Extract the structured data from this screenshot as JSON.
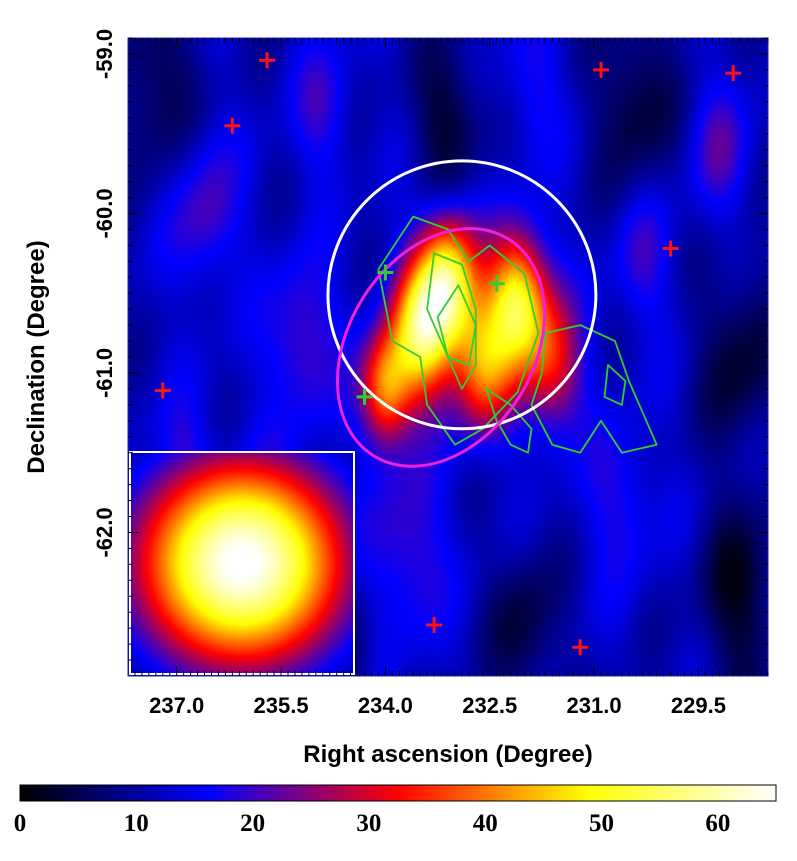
{
  "chart_data": {
    "type": "heatmap",
    "title": "",
    "xlabel": "Right ascension (Degree)",
    "ylabel": "Declination (Degree)",
    "x_axis": {
      "reversed": true,
      "xlim": [
        237.7,
        228.5
      ],
      "ticks": [
        237.0,
        235.5,
        234.0,
        232.5,
        231.0,
        229.5
      ],
      "tick_labels": [
        "237.0",
        "235.5",
        "234.0",
        "232.5",
        "231.0",
        "229.5"
      ]
    },
    "y_axis": {
      "ylim": [
        -62.9,
        -58.9
      ],
      "ticks": [
        -59.0,
        -60.0,
        -61.0,
        -62.0
      ],
      "tick_labels": [
        "-59.0",
        "-60.0",
        "-61.0",
        "-62.0"
      ]
    },
    "colorbar": {
      "min": 0,
      "max": 65,
      "ticks": [
        0,
        10,
        20,
        30,
        40,
        50,
        60
      ],
      "tick_labels": [
        "0",
        "10",
        "20",
        "30",
        "40",
        "50",
        "60"
      ],
      "colormap_stops": [
        "#000000",
        "#0000ff",
        "#ff0000",
        "#ffff00",
        "#ffffff"
      ]
    },
    "background_level": 12,
    "emission_sources": [
      {
        "ra": 233.1,
        "dec": -60.45,
        "amplitude": 40,
        "sigma_deg": 0.3
      },
      {
        "ra": 232.1,
        "dec": -60.55,
        "amplitude": 38,
        "sigma_deg": 0.3
      },
      {
        "ra": 233.5,
        "dec": -60.75,
        "amplitude": 36,
        "sigma_deg": 0.3
      },
      {
        "ra": 232.6,
        "dec": -60.95,
        "amplitude": 26,
        "sigma_deg": 0.3
      },
      {
        "ra": 231.6,
        "dec": -60.95,
        "amplitude": 20,
        "sigma_deg": 0.3
      },
      {
        "ra": 234.0,
        "dec": -61.1,
        "amplitude": 28,
        "sigma_deg": 0.25
      },
      {
        "ra": 235.2,
        "dec": -60.8,
        "amplitude": 10,
        "sigma_deg": 0.35
      },
      {
        "ra": 236.6,
        "dec": -60.0,
        "amplitude": 9,
        "sigma_deg": 0.35
      },
      {
        "ra": 234.9,
        "dec": -59.35,
        "amplitude": 7,
        "sigma_deg": 0.3
      },
      {
        "ra": 231.9,
        "dec": -59.2,
        "amplitude": 6,
        "sigma_deg": 0.3
      },
      {
        "ra": 229.2,
        "dec": -59.6,
        "amplitude": 8,
        "sigma_deg": 0.3
      },
      {
        "ra": 230.6,
        "dec": -61.8,
        "amplitude": 7,
        "sigma_deg": 0.35
      },
      {
        "ra": 233.7,
        "dec": -62.1,
        "amplitude": 9,
        "sigma_deg": 0.4
      },
      {
        "ra": 235.9,
        "dec": -62.0,
        "amplitude": 8,
        "sigma_deg": 0.4
      },
      {
        "ra": 236.9,
        "dec": -61.6,
        "amplitude": 7,
        "sigma_deg": 0.3
      },
      {
        "ra": 230.3,
        "dec": -60.3,
        "amplitude": 7,
        "sigma_deg": 0.3
      }
    ],
    "dark_regions": [
      {
        "ra": 237.3,
        "dec": -59.2,
        "amplitude": 8,
        "sigma_deg": 0.4
      },
      {
        "ra": 233.1,
        "dec": -59.4,
        "amplitude": 9,
        "sigma_deg": 0.35
      },
      {
        "ra": 230.4,
        "dec": -59.3,
        "amplitude": 9,
        "sigma_deg": 0.4
      },
      {
        "ra": 228.9,
        "dec": -60.9,
        "amplitude": 9,
        "sigma_deg": 0.4
      },
      {
        "ra": 228.9,
        "dec": -62.4,
        "amplitude": 10,
        "sigma_deg": 0.4
      },
      {
        "ra": 232.0,
        "dec": -62.6,
        "amplitude": 8,
        "sigma_deg": 0.35
      },
      {
        "ra": 234.6,
        "dec": -62.75,
        "amplitude": 6,
        "sigma_deg": 0.3
      }
    ],
    "red_markers": [
      {
        "ra": 235.7,
        "dec": -59.04
      },
      {
        "ra": 236.2,
        "dec": -59.45
      },
      {
        "ra": 237.2,
        "dec": -61.11
      },
      {
        "ra": 230.9,
        "dec": -59.1
      },
      {
        "ra": 229.0,
        "dec": -59.12
      },
      {
        "ra": 229.9,
        "dec": -60.22
      },
      {
        "ra": 233.3,
        "dec": -62.58
      },
      {
        "ra": 231.2,
        "dec": -62.72
      }
    ],
    "green_markers": [
      {
        "ra": 234.0,
        "dec": -60.37
      },
      {
        "ra": 232.4,
        "dec": -60.44
      },
      {
        "ra": 234.3,
        "dec": -61.15
      }
    ],
    "white_circle": {
      "ra": 232.9,
      "dec": -60.51,
      "radius_deg": 0.84
    },
    "magenta_ellipse": {
      "ra": 233.2,
      "dec": -60.84,
      "semi_major_deg": 0.8,
      "semi_minor_deg": 0.58,
      "angle_deg": -58
    },
    "green_contours": [
      {
        "points": [
          [
            233.6,
            -60.02
          ],
          [
            233.1,
            -60.1
          ],
          [
            232.8,
            -60.3
          ],
          [
            232.5,
            -60.2
          ],
          [
            232.0,
            -60.38
          ],
          [
            231.8,
            -60.75
          ],
          [
            232.1,
            -61.12
          ],
          [
            232.6,
            -61.35
          ],
          [
            233.0,
            -61.45
          ],
          [
            233.4,
            -61.2
          ],
          [
            233.5,
            -60.9
          ],
          [
            233.9,
            -60.8
          ],
          [
            234.1,
            -60.35
          ]
        ]
      },
      {
        "points": [
          [
            233.3,
            -60.25
          ],
          [
            232.9,
            -60.32
          ],
          [
            232.7,
            -60.6
          ],
          [
            232.7,
            -60.95
          ],
          [
            232.9,
            -61.1
          ],
          [
            233.15,
            -60.85
          ],
          [
            233.4,
            -60.6
          ]
        ]
      },
      {
        "points": [
          [
            232.95,
            -60.45
          ],
          [
            232.7,
            -60.7
          ],
          [
            232.8,
            -60.95
          ],
          [
            233.1,
            -60.9
          ],
          [
            233.25,
            -60.65
          ]
        ]
      },
      {
        "points": [
          [
            232.55,
            -61.1
          ],
          [
            232.2,
            -61.2
          ],
          [
            231.9,
            -61.35
          ],
          [
            231.95,
            -61.5
          ],
          [
            232.2,
            -61.45
          ],
          [
            232.4,
            -61.3
          ]
        ]
      },
      {
        "points": [
          [
            231.7,
            -60.75
          ],
          [
            231.2,
            -60.7
          ],
          [
            230.7,
            -60.8
          ],
          [
            230.5,
            -61.05
          ],
          [
            230.3,
            -61.25
          ],
          [
            230.1,
            -61.45
          ],
          [
            230.6,
            -61.5
          ],
          [
            230.9,
            -61.3
          ],
          [
            231.2,
            -61.5
          ],
          [
            231.6,
            -61.45
          ],
          [
            231.9,
            -61.2
          ],
          [
            231.75,
            -61.0
          ]
        ]
      },
      {
        "points": [
          [
            230.8,
            -60.95
          ],
          [
            230.55,
            -61.05
          ],
          [
            230.6,
            -61.2
          ],
          [
            230.85,
            -61.15
          ]
        ]
      }
    ],
    "inset": {
      "description": "psf",
      "peak": 62,
      "sigma_fraction": 0.34
    }
  }
}
